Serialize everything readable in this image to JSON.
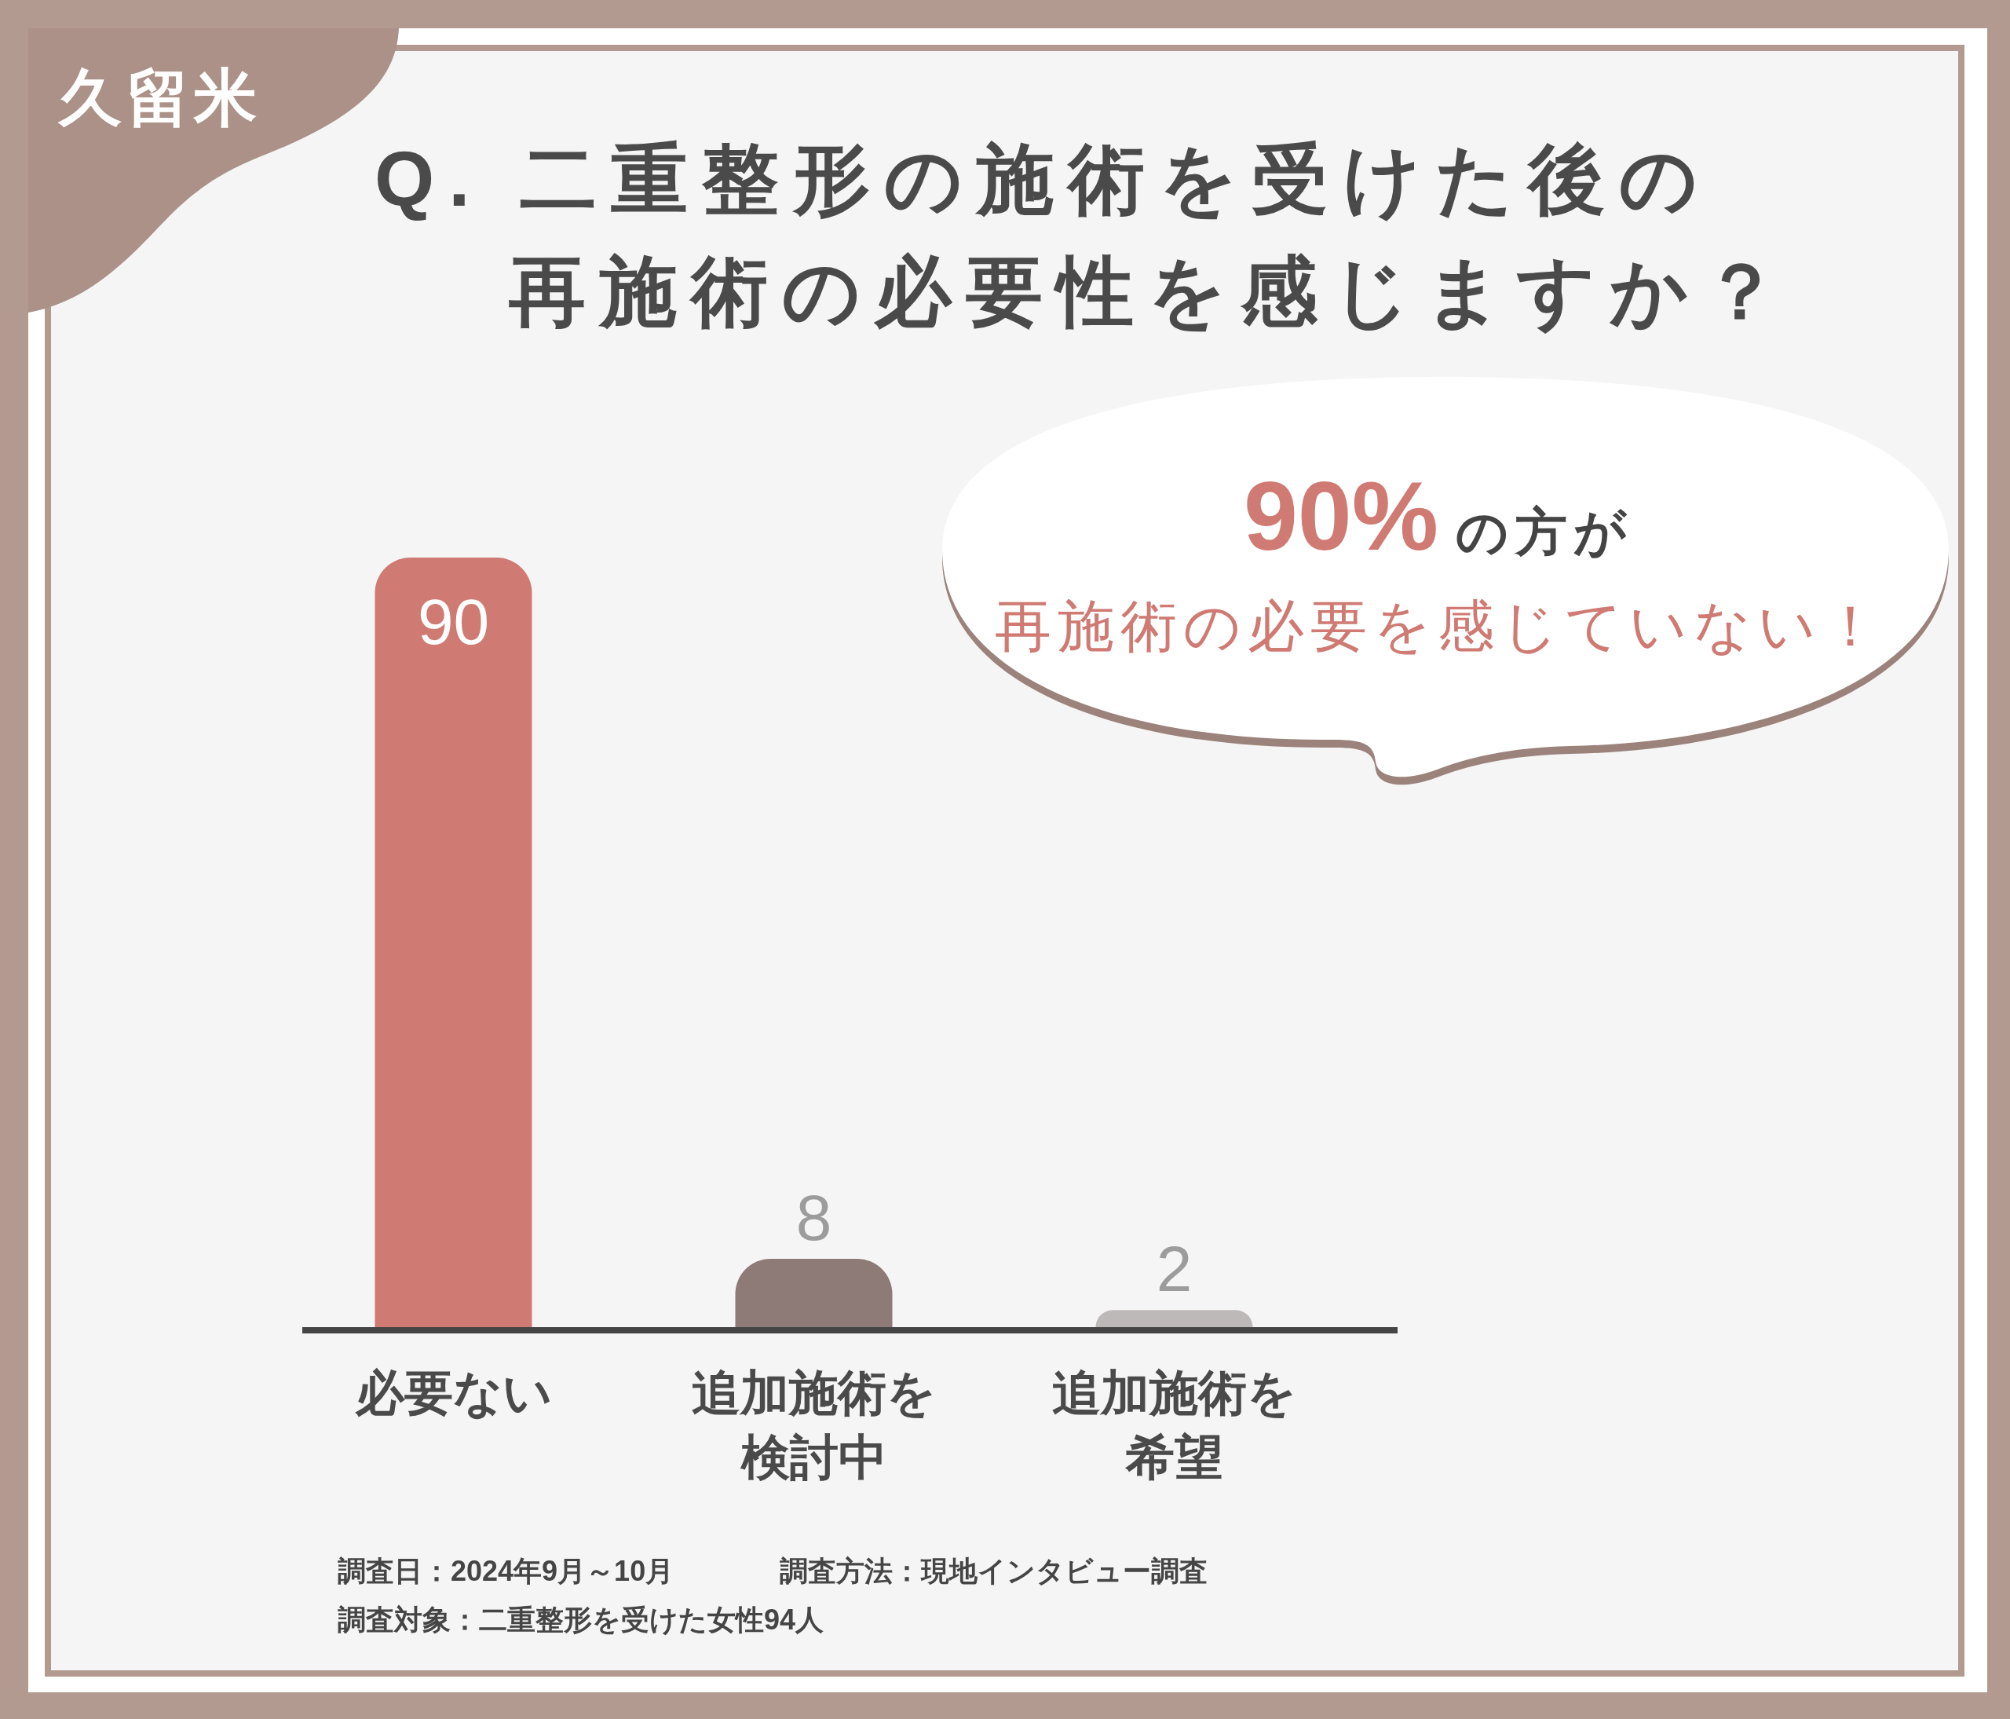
{
  "chart_data": {
    "type": "bar",
    "title": "Q. 二重整形の施術を受けた後の再施術の必要性を感じますか？",
    "subtitle": "久留米",
    "categories": [
      "必要ない",
      "追加施術を検討中",
      "追加施術を希望"
    ],
    "values": [
      90,
      8,
      2
    ],
    "colors": [
      "#cf7a73",
      "#8e7a77",
      "#bcb9b8"
    ],
    "data_labels": true,
    "annotations": [
      "90%",
      "の方が",
      "再施術の必要を感じていない！",
      "調査日：2024年9月～10月",
      "調査方法：現地インタビュー調査",
      "調査対象：二重整形を受けた女性94人"
    ]
  }
}
